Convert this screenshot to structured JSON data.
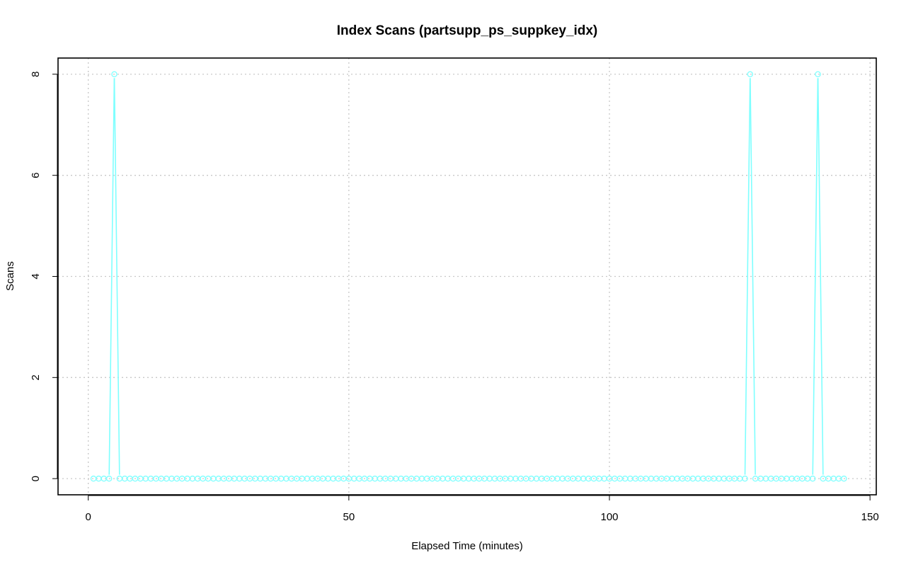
{
  "chart_data": {
    "type": "line",
    "title": "Index Scans (partsupp_ps_suppkey_idx)",
    "xlabel": "Elapsed Time (minutes)",
    "ylabel": "Scans",
    "xlim": [
      -5.8,
      151.2
    ],
    "ylim": [
      -0.32,
      8.32
    ],
    "x_ticks": [
      0,
      50,
      100,
      150
    ],
    "y_ticks": [
      0,
      2,
      4,
      6,
      8
    ],
    "grid": true,
    "line_style": "overplotted points and lines",
    "series": [
      {
        "color": "#7fffff",
        "x": [
          1,
          2,
          3,
          4,
          5,
          6,
          7,
          8,
          9,
          10,
          11,
          12,
          13,
          14,
          15,
          16,
          17,
          18,
          19,
          20,
          21,
          22,
          23,
          24,
          25,
          26,
          27,
          28,
          29,
          30,
          31,
          32,
          33,
          34,
          35,
          36,
          37,
          38,
          39,
          40,
          41,
          42,
          43,
          44,
          45,
          46,
          47,
          48,
          49,
          50,
          51,
          52,
          53,
          54,
          55,
          56,
          57,
          58,
          59,
          60,
          61,
          62,
          63,
          64,
          65,
          66,
          67,
          68,
          69,
          70,
          71,
          72,
          73,
          74,
          75,
          76,
          77,
          78,
          79,
          80,
          81,
          82,
          83,
          84,
          85,
          86,
          87,
          88,
          89,
          90,
          91,
          92,
          93,
          94,
          95,
          96,
          97,
          98,
          99,
          100,
          101,
          102,
          103,
          104,
          105,
          106,
          107,
          108,
          109,
          110,
          111,
          112,
          113,
          114,
          115,
          116,
          117,
          118,
          119,
          120,
          121,
          122,
          123,
          124,
          125,
          126,
          127,
          128,
          129,
          130,
          131,
          132,
          133,
          134,
          135,
          136,
          137,
          138,
          139,
          140,
          141,
          142,
          143,
          144,
          145
        ],
        "y": [
          0,
          0,
          0,
          0,
          8,
          0,
          0,
          0,
          0,
          0,
          0,
          0,
          0,
          0,
          0,
          0,
          0,
          0,
          0,
          0,
          0,
          0,
          0,
          0,
          0,
          0,
          0,
          0,
          0,
          0,
          0,
          0,
          0,
          0,
          0,
          0,
          0,
          0,
          0,
          0,
          0,
          0,
          0,
          0,
          0,
          0,
          0,
          0,
          0,
          0,
          0,
          0,
          0,
          0,
          0,
          0,
          0,
          0,
          0,
          0,
          0,
          0,
          0,
          0,
          0,
          0,
          0,
          0,
          0,
          0,
          0,
          0,
          0,
          0,
          0,
          0,
          0,
          0,
          0,
          0,
          0,
          0,
          0,
          0,
          0,
          0,
          0,
          0,
          0,
          0,
          0,
          0,
          0,
          0,
          0,
          0,
          0,
          0,
          0,
          0,
          0,
          0,
          0,
          0,
          0,
          0,
          0,
          0,
          0,
          0,
          0,
          0,
          0,
          0,
          0,
          0,
          0,
          0,
          0,
          0,
          0,
          0,
          0,
          0,
          0,
          0,
          8,
          0,
          0,
          0,
          0,
          0,
          0,
          0,
          0,
          0,
          0,
          0,
          0,
          8,
          0,
          0,
          0,
          0,
          0
        ]
      }
    ]
  }
}
